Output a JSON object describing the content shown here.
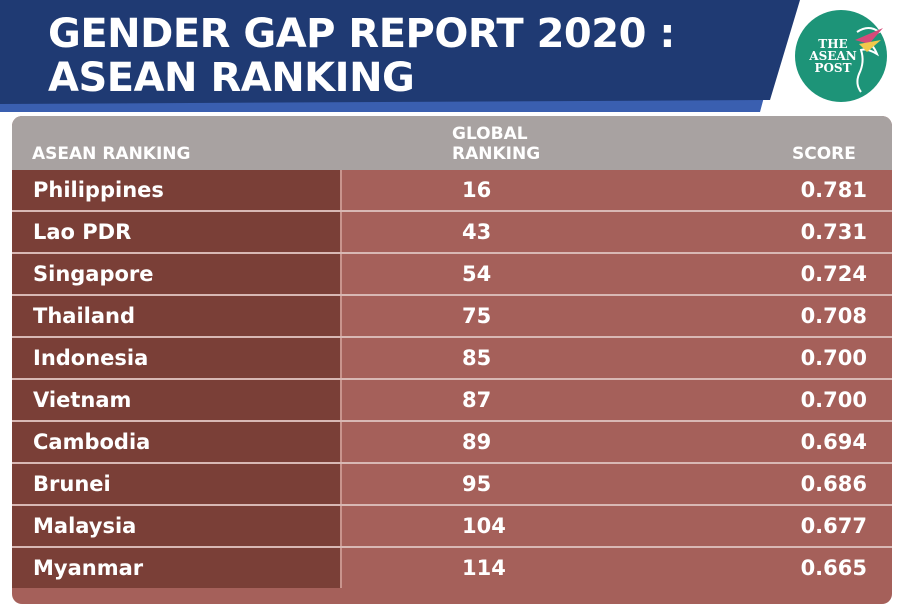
{
  "header": {
    "title_line1": "GENDER GAP REPORT 2020 :",
    "title_line2": "ASEAN RANKING",
    "logo_text": "THE ASEAN POST"
  },
  "colors": {
    "banner": "#1f3a73",
    "banner_accent": "#3a5fb0",
    "header_row": "#a8a2a1",
    "country_col": "#7a3f37",
    "value_col": "#a5605a",
    "logo_bg": "#1d9478"
  },
  "chart_data": {
    "type": "table",
    "title": "GENDER GAP REPORT 2020 : ASEAN RANKING",
    "columns": [
      "ASEAN RANKING",
      "GLOBAL RANKING",
      "SCORE"
    ],
    "rows": [
      {
        "country": "Philippines",
        "global": "16",
        "score": "0.781"
      },
      {
        "country": "Lao PDR",
        "global": "43",
        "score": "0.731"
      },
      {
        "country": "Singapore",
        "global": "54",
        "score": "0.724"
      },
      {
        "country": "Thailand",
        "global": "75",
        "score": "0.708"
      },
      {
        "country": "Indonesia",
        "global": "85",
        "score": "0.700"
      },
      {
        "country": "Vietnam",
        "global": "87",
        "score": "0.700"
      },
      {
        "country": "Cambodia",
        "global": "89",
        "score": "0.694"
      },
      {
        "country": "Brunei",
        "global": "95",
        "score": "0.686"
      },
      {
        "country": "Malaysia",
        "global": "104",
        "score": "0.677"
      },
      {
        "country": "Myanmar",
        "global": "114",
        "score": "0.665"
      }
    ]
  }
}
